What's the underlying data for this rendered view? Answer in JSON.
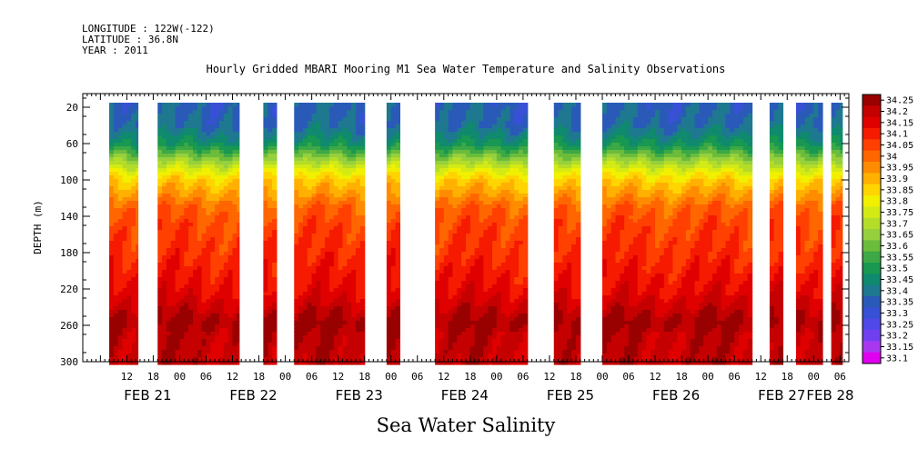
{
  "header": {
    "longitude": "LONGITUDE : 122W(-122)",
    "latitude": "LATITUDE : 36.8N",
    "year": "YEAR : 2011"
  },
  "chart_data": {
    "type": "heatmap",
    "title": "Hourly Gridded MBARI Mooring M1 Sea Water Temperature and Salinity Observations",
    "xlabel": "Sea Water Salinity",
    "ylabel": "DEPTH (m)",
    "x_range_hours_from_feb21_00": [
      6,
      175
    ],
    "y_range_depth_m": [
      0,
      300
    ],
    "y_axis_inverted": true,
    "y_ticks": [
      "20",
      "60",
      "100",
      "140",
      "180",
      "220",
      "260",
      "300"
    ],
    "x_hour_ticks": [
      "12",
      "18",
      "00",
      "06",
      "12",
      "18",
      "00",
      "06",
      "12",
      "18",
      "00",
      "06",
      "12",
      "18",
      "00",
      "06",
      "12",
      "18",
      "00",
      "06",
      "12",
      "18",
      "00",
      "06",
      "12",
      "18",
      "00",
      "06"
    ],
    "x_day_labels": [
      "FEB 21",
      "FEB 22",
      "FEB 23",
      "FEB 24",
      "FEB 25",
      "FEB 26",
      "FEB 27",
      "FEB 28"
    ],
    "colorbar": {
      "levels": [
        "34.25",
        "34.2",
        "34.15",
        "34.1",
        "34.05",
        "34",
        "33.95",
        "33.9",
        "33.85",
        "33.8",
        "33.75",
        "33.7",
        "33.65",
        "33.6",
        "33.55",
        "33.5",
        "33.45",
        "33.4",
        "33.35",
        "33.3",
        "33.25",
        "33.2",
        "33.15",
        "33.1"
      ],
      "colors": [
        "#990000",
        "#c40000",
        "#e00000",
        "#f51a00",
        "#ff4000",
        "#ff6600",
        "#ff8c00",
        "#ffb000",
        "#ffd400",
        "#f0f000",
        "#d4ea14",
        "#b4dc28",
        "#96d03c",
        "#6cbc3c",
        "#3ca846",
        "#189850",
        "#108a6e",
        "#1e7890",
        "#2a5ab8",
        "#3850d6",
        "#5048e8",
        "#7040f0",
        "#a838f0",
        "#e000f0"
      ]
    },
    "data_segments_hours": [
      [
        8,
        14.5
      ],
      [
        19,
        37.5
      ],
      [
        43,
        46
      ],
      [
        50,
        66
      ],
      [
        71,
        74
      ],
      [
        82,
        103
      ],
      [
        109,
        115
      ],
      [
        120,
        154
      ],
      [
        158,
        161
      ],
      [
        164,
        168
      ],
      [
        168,
        170
      ],
      [
        172,
        174.5
      ]
    ],
    "mean_profile": [
      {
        "depth": 20,
        "salinity": 33.33
      },
      {
        "depth": 40,
        "salinity": 33.35
      },
      {
        "depth": 60,
        "salinity": 33.45
      },
      {
        "depth": 75,
        "salinity": 33.6
      },
      {
        "depth": 90,
        "salinity": 33.75
      },
      {
        "depth": 100,
        "salinity": 33.83
      },
      {
        "depth": 115,
        "salinity": 33.9
      },
      {
        "depth": 130,
        "salinity": 33.98
      },
      {
        "depth": 150,
        "salinity": 34.02
      },
      {
        "depth": 180,
        "salinity": 34.05
      },
      {
        "depth": 200,
        "salinity": 34.08
      },
      {
        "depth": 225,
        "salinity": 34.12
      },
      {
        "depth": 245,
        "salinity": 34.18
      },
      {
        "depth": 258,
        "salinity": 34.22
      },
      {
        "depth": 270,
        "salinity": 34.18
      },
      {
        "depth": 300,
        "salinity": 34.17
      }
    ]
  }
}
